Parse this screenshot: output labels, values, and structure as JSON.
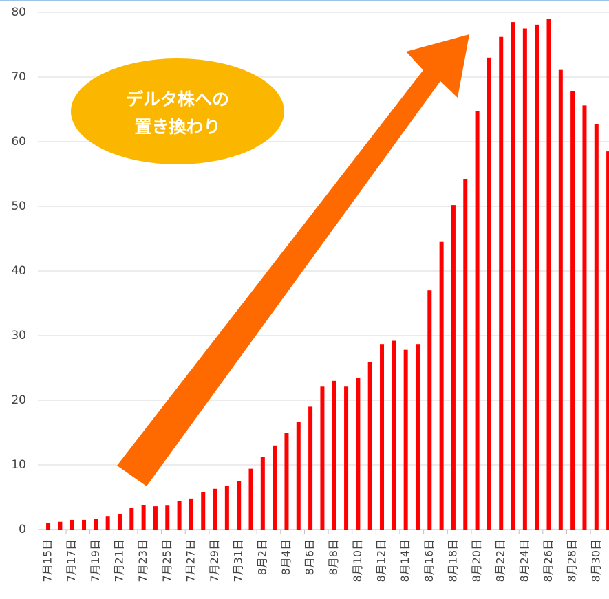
{
  "chart_data": {
    "type": "bar",
    "categories": [
      "7月15日",
      null,
      "7月17日",
      null,
      "7月19日",
      null,
      "7月21日",
      null,
      "7月23日",
      null,
      "7月25日",
      null,
      "7月27日",
      null,
      "7月29日",
      null,
      "7月31日",
      null,
      "8月2日",
      null,
      "8月4日",
      null,
      "8月6日",
      null,
      "8月8日",
      null,
      "8月10日",
      null,
      "8月12日",
      null,
      "8月14日",
      null,
      "8月16日",
      null,
      "8月18日",
      null,
      "8月20日",
      null,
      "8月22日",
      null,
      "8月24日",
      null,
      "8月26日",
      null,
      "8月28日",
      null,
      "8月30日",
      null
    ],
    "values": [
      1.0,
      1.2,
      1.5,
      1.5,
      1.7,
      2.0,
      2.4,
      3.3,
      3.8,
      3.6,
      3.7,
      4.4,
      4.8,
      5.8,
      6.3,
      6.8,
      7.5,
      9.4,
      11.2,
      13.0,
      14.9,
      16.6,
      19.0,
      22.1,
      23.0,
      22.1,
      23.5,
      25.9,
      28.7,
      29.2,
      27.8,
      28.7,
      37.0,
      44.5,
      50.2,
      54.2,
      64.7,
      73.0,
      76.2,
      78.5,
      77.5,
      78.1,
      79.0,
      71.1,
      67.8,
      65.6,
      62.7,
      58.5
    ],
    "color": "#ff0000",
    "ylim": [
      0,
      80
    ],
    "yticks": [
      0,
      10,
      20,
      30,
      40,
      50,
      60,
      70,
      80
    ],
    "grid": true,
    "annotation": [
      "デルタ株への",
      "置き換わり"
    ]
  }
}
